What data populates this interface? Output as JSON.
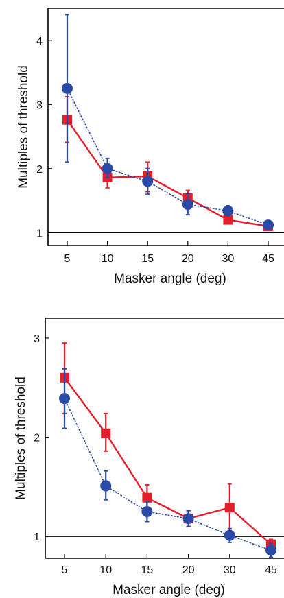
{
  "chart_data": [
    {
      "type": "line",
      "categories": [
        "5",
        "10",
        "15",
        "20",
        "30",
        "45"
      ],
      "xlabel": "Masker angle (deg)",
      "ylabel": "Multiples of threshold",
      "ylim": [
        0.8,
        4.5
      ],
      "yticks": [
        "1",
        "2",
        "3",
        "4"
      ],
      "reference_line": 1,
      "grid": false,
      "legend": "none",
      "series": [
        {
          "color": "#e41d2b",
          "style": "solid",
          "marker": "square",
          "values": [
            2.76,
            1.86,
            1.88,
            1.54,
            1.2,
            1.1
          ],
          "error_low": [
            2.41,
            1.7,
            1.64,
            1.4,
            1.14,
            1.05
          ],
          "error_high": [
            3.12,
            2.02,
            2.1,
            1.66,
            1.26,
            1.15
          ]
        },
        {
          "color": "#2b4aa8",
          "style": "dotted",
          "marker": "circle",
          "values": [
            3.25,
            2.0,
            1.8,
            1.44,
            1.34,
            1.12
          ],
          "error_low": [
            2.1,
            1.86,
            1.6,
            1.28,
            1.26,
            1.07
          ],
          "error_high": [
            4.4,
            2.16,
            2.0,
            1.6,
            1.42,
            1.17
          ]
        }
      ]
    },
    {
      "type": "line",
      "categories": [
        "5",
        "10",
        "15",
        "20",
        "30",
        "45"
      ],
      "xlabel": "Masker angle (deg)",
      "ylabel": "Multiples of threshold",
      "ylim": [
        0.78,
        3.2
      ],
      "yticks": [
        "1",
        "2",
        "3"
      ],
      "reference_line": 1,
      "grid": false,
      "legend": "none",
      "series": [
        {
          "color": "#e41d2b",
          "style": "solid",
          "marker": "square",
          "values": [
            2.6,
            2.04,
            1.39,
            1.18,
            1.29,
            0.92
          ],
          "error_low": [
            2.24,
            1.86,
            1.26,
            1.1,
            1.06,
            0.87
          ],
          "error_high": [
            2.95,
            2.24,
            1.52,
            1.26,
            1.53,
            0.97
          ]
        },
        {
          "color": "#2b4aa8",
          "style": "dotted",
          "marker": "circle",
          "values": [
            2.39,
            1.51,
            1.25,
            1.18,
            1.01,
            0.86
          ],
          "error_low": [
            2.09,
            1.37,
            1.15,
            1.1,
            0.94,
            0.79
          ],
          "error_high": [
            2.69,
            1.66,
            1.35,
            1.26,
            1.08,
            0.93
          ]
        }
      ]
    }
  ]
}
